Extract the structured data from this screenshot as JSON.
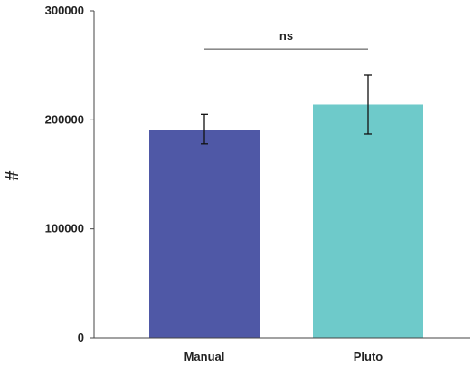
{
  "chart_data": {
    "type": "bar",
    "title": "",
    "xlabel": "",
    "ylabel": "#",
    "ylim": [
      0,
      300000
    ],
    "yticks": [
      0,
      100000,
      200000,
      300000
    ],
    "grid": false,
    "categories": [
      "Manual",
      "Pluto"
    ],
    "values": [
      191000,
      214000
    ],
    "error_bars": [
      {
        "low": 178000,
        "high": 205000
      },
      {
        "low": 187000,
        "high": 241000
      }
    ],
    "colors": [
      "#4f58a6",
      "#6ecaca"
    ],
    "significance": {
      "from": 0,
      "to": 1,
      "label": "ns",
      "y": 265000
    }
  }
}
